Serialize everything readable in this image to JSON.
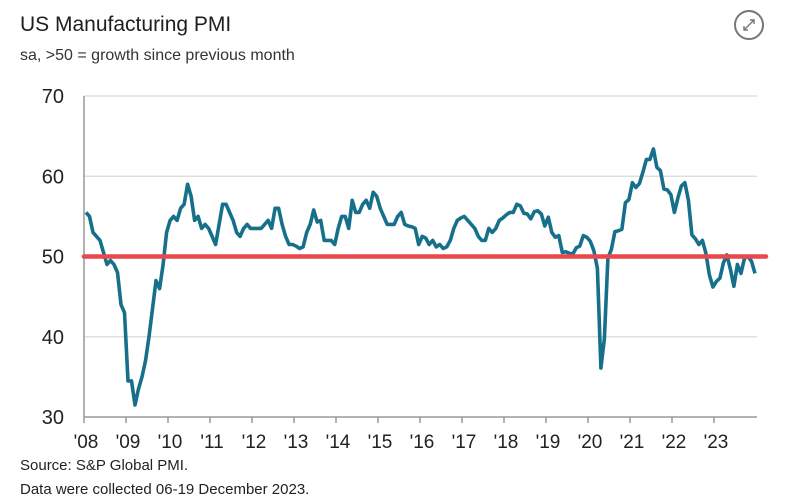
{
  "header": {
    "title": "US Manufacturing PMI",
    "subtitle": "sa, >50 = growth since previous month",
    "expand_icon": "expand-arrows-icon"
  },
  "footer": {
    "source": "Source: S&P Global PMI.",
    "note": "Data were collected 06-19 December 2023."
  },
  "chart_data": {
    "type": "line",
    "title": "US Manufacturing PMI",
    "subtitle": "sa, >50 = growth since previous month",
    "ylim": [
      30,
      70
    ],
    "yticks": [
      "30",
      "40",
      "50",
      "60",
      "70"
    ],
    "xticks": [
      "'08",
      "'09",
      "'10",
      "'11",
      "'12",
      "'13",
      "'14",
      "'15",
      "'16",
      "'17",
      "'18",
      "'19",
      "'20",
      "'21",
      "'22",
      "'23"
    ],
    "x_start": "2008-01",
    "x_end": "2023-12",
    "frequency": "monthly",
    "grid": true,
    "reference_line": {
      "value": 50,
      "color": "#e8474c"
    },
    "series": [
      {
        "color": "#17708a",
        "values": [
          55.5,
          55,
          53,
          52.5,
          52,
          50.5,
          49,
          49.5,
          49,
          48,
          44,
          43,
          34.5,
          34.5,
          31.5,
          33.5,
          35,
          37,
          40,
          43.5,
          47,
          46,
          49,
          53,
          54.5,
          55,
          54.5,
          56,
          56.5,
          59,
          57.5,
          54.5,
          55,
          53.5,
          54,
          53.5,
          52.5,
          51.5,
          54,
          56.5,
          56.5,
          55.5,
          54.5,
          53,
          52.5,
          53.5,
          54,
          53.5,
          53.5,
          53.5,
          53.5,
          54,
          54.5,
          53.5,
          56,
          56,
          54,
          52.5,
          51.5,
          51.5,
          51.3,
          51,
          51.2,
          53,
          54,
          55.8,
          54.3,
          54.5,
          52,
          52,
          52,
          51.5,
          53.5,
          55,
          55,
          53.5,
          57,
          55.5,
          55.5,
          56.5,
          57,
          56,
          58,
          57.5,
          56,
          55,
          54,
          54,
          54,
          55,
          55.5,
          54,
          53.8,
          53.7,
          53.5,
          51.5,
          52.5,
          52.3,
          51.5,
          52,
          51.2,
          51.5,
          51,
          51.2,
          52,
          53.5,
          54.5,
          54.8,
          55,
          54.5,
          54,
          53.5,
          52.5,
          52,
          52,
          53.5,
          53,
          53.5,
          54.5,
          54.8,
          55.2,
          55.5,
          55.5,
          56.5,
          56.3,
          55.4,
          55.3,
          54.7,
          55.6,
          55.7,
          55.3,
          53.8,
          54.9,
          53,
          52.4,
          52.6,
          50.5,
          50.6,
          50.4,
          50.3,
          51.1,
          51.3,
          52.6,
          52.4,
          51.9,
          50.7,
          48.5,
          36.1,
          39.8,
          49.8,
          50.9,
          53.1,
          53.2,
          53.4,
          56.7,
          57.1,
          59.2,
          58.6,
          59.1,
          60.5,
          62.1,
          62.1,
          63.4,
          61.1,
          60.7,
          58.4,
          58.3,
          57.7,
          55.5,
          57.3,
          58.8,
          59.2,
          57,
          52.7,
          52.2,
          51.5,
          52,
          50.4,
          47.7,
          46.2,
          46.9,
          47.3,
          49.2,
          50.2,
          48.4,
          46.3,
          49,
          47.9,
          49.8,
          50,
          49.4,
          47.9
        ]
      }
    ]
  }
}
